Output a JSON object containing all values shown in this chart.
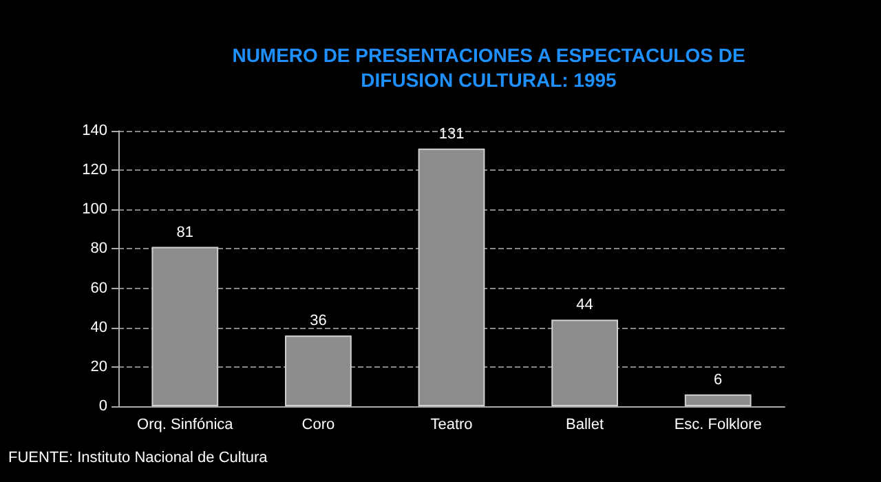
{
  "chart_data": {
    "type": "bar",
    "title": "NUMERO DE PRESENTACIONES A ESPECTACULOS DE\nDIFUSION CULTURAL: 1995",
    "categories": [
      "Orq. Sinfónica",
      "Coro",
      "Teatro",
      "Ballet",
      "Esc. Folklore"
    ],
    "values": [
      81,
      36,
      131,
      44,
      6
    ],
    "color": "#8c8c8c",
    "ylim": [
      0,
      140
    ],
    "yticks": [
      0,
      20,
      40,
      60,
      80,
      100,
      120,
      140
    ],
    "grid": "y",
    "data_labels": true,
    "annotations": [
      "FUENTE: Instituto Nacional de Cultura"
    ]
  }
}
